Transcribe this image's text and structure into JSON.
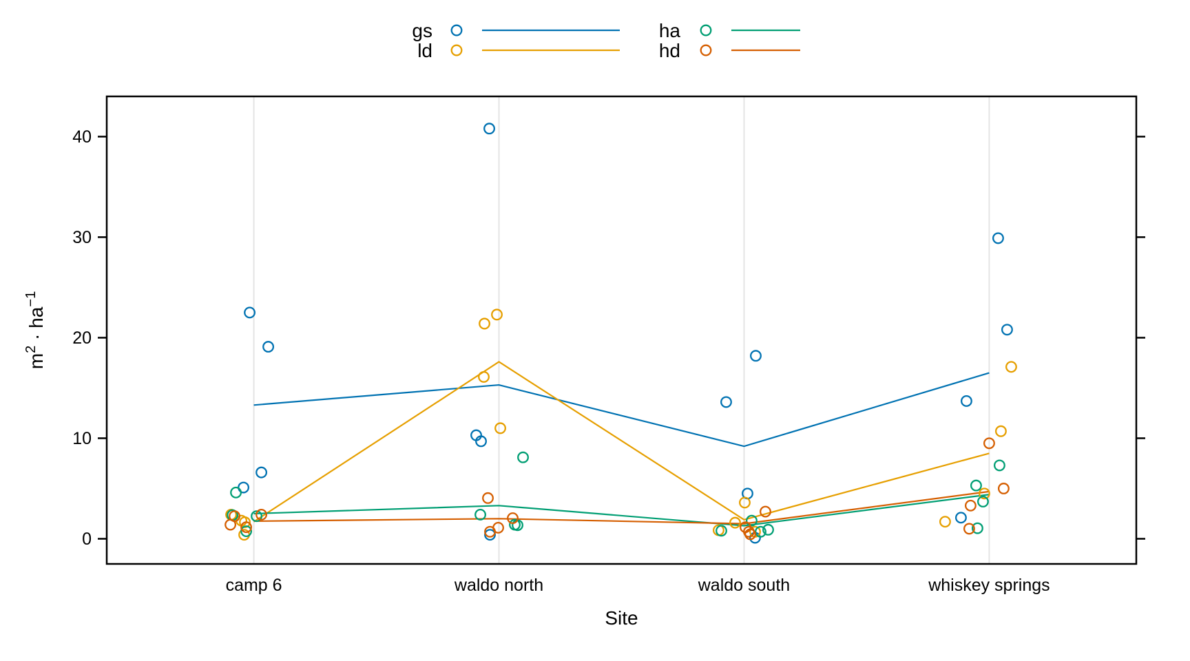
{
  "legend": {
    "position": "top-center",
    "columns": [
      [
        {
          "label": "gs",
          "color": "#0072B2"
        },
        {
          "label": "ld",
          "color": "#E69F00"
        }
      ],
      [
        {
          "label": "ha",
          "color": "#009E73"
        },
        {
          "label": "hd",
          "color": "#D55E00"
        }
      ]
    ]
  },
  "chart_data": {
    "type": "scatter",
    "subtype": "jittered points by category with group mean lines (interaction plot)",
    "title": "",
    "xlabel": "Site",
    "ylabel": "m2 · ha-1",
    "ylabel_parts": [
      {
        "t": "m"
      },
      {
        "t": "2",
        "sup": true
      },
      {
        "t": " · ha"
      },
      {
        "t": "−1",
        "sup": true
      }
    ],
    "categories": [
      "camp 6",
      "waldo north",
      "waldo south",
      "whiskey springs"
    ],
    "yticks": [
      0,
      10,
      20,
      30,
      40
    ],
    "ylim": [
      -2.5,
      44
    ],
    "grid": "light vertical gridline at each category",
    "legend_position": "top",
    "axis_color": "#000000",
    "gridline_color": "#E4E4E4",
    "series": [
      {
        "name": "gs",
        "color": "#0072B2",
        "means": [
          13.3,
          15.3,
          9.2,
          16.5
        ],
        "points": [
          [
            [
              -6,
              22.5
            ],
            [
              21,
              19.1
            ],
            [
              11,
              6.6
            ],
            [
              -15,
              5.1
            ]
          ],
          [
            [
              -14,
              40.8
            ],
            [
              -33,
              10.3
            ],
            [
              -26,
              9.7
            ],
            [
              -13,
              0.4
            ]
          ],
          [
            [
              17,
              18.2
            ],
            [
              -26,
              13.6
            ],
            [
              5,
              4.5
            ],
            [
              16,
              0.1
            ]
          ],
          [
            [
              13,
              29.9
            ],
            [
              26,
              20.8
            ],
            [
              -33,
              13.7
            ],
            [
              -41,
              2.1
            ]
          ]
        ]
      },
      {
        "name": "ld",
        "color": "#E69F00",
        "means": [
          1.7,
          17.6,
          1.9,
          8.5
        ],
        "points": [
          [
            [
              -33,
              2.4
            ],
            [
              -18,
              1.8
            ],
            [
              -13,
              1.65
            ],
            [
              -14,
              0.4
            ]
          ],
          [
            [
              -3,
              22.3
            ],
            [
              -21,
              21.4
            ],
            [
              -22,
              16.1
            ],
            [
              2,
              11.0
            ]
          ],
          [
            [
              1,
              3.6
            ],
            [
              -13,
              1.6
            ],
            [
              -37,
              0.85
            ],
            [
              16,
              0.7
            ]
          ],
          [
            [
              32,
              17.1
            ],
            [
              17,
              10.7
            ],
            [
              -7,
              4.5
            ],
            [
              -64,
              1.7
            ]
          ]
        ]
      },
      {
        "name": "ha",
        "color": "#009E73",
        "means": [
          2.5,
          3.3,
          1.3,
          4.4
        ],
        "points": [
          [
            [
              -26,
              4.6
            ],
            [
              -31,
              2.35
            ],
            [
              4,
              2.25
            ],
            [
              -11,
              0.75
            ]
          ],
          [
            [
              35,
              8.1
            ],
            [
              -27,
              2.4
            ],
            [
              23,
              1.4
            ],
            [
              27,
              1.35
            ]
          ],
          [
            [
              11,
              1.8
            ],
            [
              -33,
              0.8
            ],
            [
              35,
              0.9
            ],
            [
              24,
              0.7
            ]
          ],
          [
            [
              15,
              7.3
            ],
            [
              -19,
              5.3
            ],
            [
              -9,
              3.7
            ],
            [
              -17,
              1.05
            ]
          ]
        ]
      },
      {
        "name": "hd",
        "color": "#D55E00",
        "means": [
          1.75,
          2.0,
          1.5,
          4.7
        ],
        "points": [
          [
            [
              11,
              2.4
            ],
            [
              -28,
              2.25
            ],
            [
              -34,
              1.4
            ],
            [
              -11,
              1.15
            ]
          ],
          [
            [
              -16,
              4.05
            ],
            [
              20,
              2.05
            ],
            [
              -1,
              1.1
            ],
            [
              -13,
              0.7
            ]
          ],
          [
            [
              31,
              2.7
            ],
            [
              2,
              1.15
            ],
            [
              7,
              0.7
            ],
            [
              9,
              0.45
            ]
          ],
          [
            [
              0,
              9.5
            ],
            [
              21,
              5.0
            ],
            [
              -27,
              3.3
            ],
            [
              -29,
              1.0
            ]
          ]
        ]
      }
    ]
  }
}
